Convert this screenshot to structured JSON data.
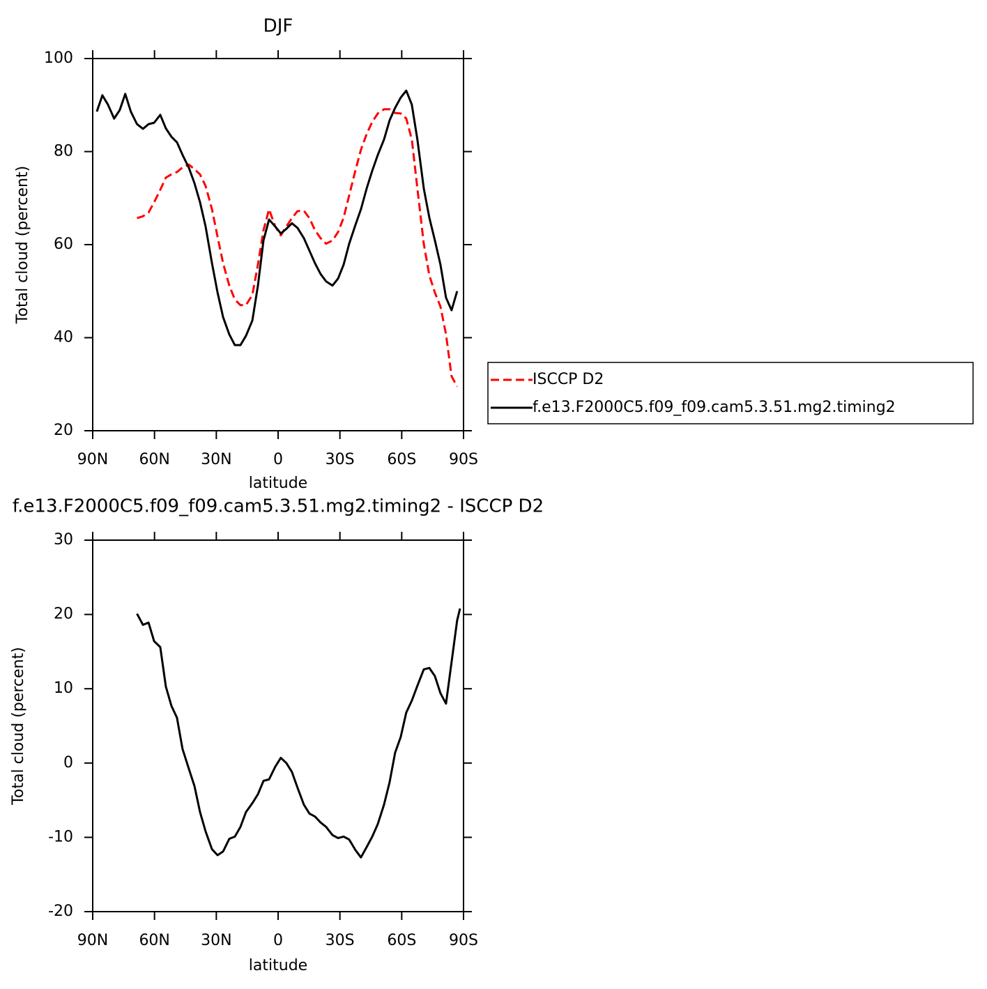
{
  "chart_data": [
    {
      "type": "line",
      "title": "DJF",
      "xlabel": "latitude",
      "ylabel": "Total cloud (percent)",
      "xlim": [
        90,
        -90
      ],
      "xticks": [
        {
          "value": 90,
          "label": "90N"
        },
        {
          "value": 60,
          "label": "60N"
        },
        {
          "value": 30,
          "label": "30N"
        },
        0,
        {
          "value": -30,
          "label": "30S"
        },
        {
          "value": -60,
          "label": "60S"
        },
        {
          "value": -90,
          "label": "90S"
        }
      ],
      "ylim": [
        20,
        100
      ],
      "yticks": [
        20,
        40,
        60,
        80,
        100
      ],
      "legend": "right",
      "x": [
        88.0,
        85.3,
        82.6,
        79.6,
        76.9,
        74.2,
        71.5,
        68.5,
        65.6,
        62.9,
        60.2,
        57.2,
        54.5,
        51.8,
        49.1,
        46.4,
        43.3,
        40.6,
        37.9,
        35.2,
        32.1,
        29.4,
        26.7,
        23.7,
        21.0,
        18.3,
        15.6,
        12.5,
        9.8,
        7.1,
        4.4,
        1.4,
        -1.3,
        -4.0,
        -6.7,
        -9.4,
        -12.5,
        -15.2,
        -17.9,
        -20.6,
        -23.3,
        -26.4,
        -29.1,
        -31.8,
        -34.5,
        -37.5,
        -40.2,
        -43.0,
        -45.7,
        -48.4,
        -51.4,
        -54.1,
        -56.8,
        -59.5,
        -62.2,
        -64.9,
        -67.6,
        -70.7,
        -73.4,
        -76.1,
        -78.8,
        -81.5,
        -84.2,
        -86.9
      ],
      "series": [
        {
          "name": "ISCCP D2",
          "color": "#ff0000",
          "dash": true,
          "values": [
            null,
            null,
            null,
            null,
            null,
            null,
            null,
            65.7,
            66.1,
            66.9,
            69.1,
            71.8,
            74.4,
            75.1,
            75.6,
            76.6,
            77.2,
            76.2,
            75.1,
            72.6,
            67.6,
            61.7,
            56.0,
            51.2,
            48.2,
            47.0,
            47.0,
            49.2,
            55.7,
            63.1,
            67.6,
            63.9,
            62.0,
            63.9,
            65.7,
            67.2,
            67.3,
            65.7,
            63.1,
            61.4,
            60.2,
            60.9,
            62.7,
            65.8,
            70.6,
            75.9,
            80.4,
            83.8,
            86.4,
            88.2,
            89.1,
            89.1,
            88.3,
            88.2,
            87.1,
            82.6,
            72.1,
            60.2,
            53.4,
            49.7,
            46.7,
            40.7,
            31.7,
            29.5
          ]
        },
        {
          "name": "f.e13.F2000C5.f09_f09.cam5.3.51.mg2.timing2",
          "color": "#000000",
          "dash": false,
          "values": [
            88.6,
            92.1,
            90.1,
            87.1,
            88.9,
            92.4,
            88.6,
            85.9,
            84.9,
            85.9,
            86.2,
            87.9,
            85.0,
            83.2,
            82.0,
            79.3,
            76.5,
            73.2,
            69.1,
            63.9,
            56.0,
            49.7,
            44.4,
            40.7,
            38.4,
            38.4,
            40.4,
            43.7,
            51.2,
            60.9,
            65.4,
            63.9,
            62.4,
            63.4,
            64.6,
            63.6,
            61.4,
            58.7,
            56.0,
            53.7,
            52.1,
            51.2,
            52.7,
            55.7,
            60.2,
            64.2,
            67.6,
            72.1,
            75.9,
            79.3,
            82.6,
            86.7,
            89.4,
            91.6,
            93.1,
            90.1,
            82.6,
            72.1,
            65.8,
            60.9,
            55.7,
            48.6,
            45.9,
            50.0
          ]
        }
      ]
    },
    {
      "type": "line",
      "title": "f.e13.F2000C5.f09_f09.cam5.3.51.mg2.timing2 - ISCCP D2",
      "xlabel": "latitude",
      "ylabel": "Total cloud (percent)",
      "xlim": [
        90,
        -90
      ],
      "xticks": [
        {
          "value": 90,
          "label": "90N"
        },
        {
          "value": 60,
          "label": "60N"
        },
        {
          "value": 30,
          "label": "30N"
        },
        0,
        {
          "value": -30,
          "label": "30S"
        },
        {
          "value": -60,
          "label": "60S"
        },
        {
          "value": -90,
          "label": "90S"
        }
      ],
      "ylim": [
        -20,
        30
      ],
      "yticks": [
        -20,
        -10,
        0,
        10,
        20,
        30
      ],
      "x": [
        68.5,
        65.6,
        62.9,
        60.2,
        57.2,
        54.5,
        51.8,
        49.1,
        46.4,
        43.3,
        40.6,
        37.9,
        35.2,
        32.1,
        29.4,
        26.7,
        23.7,
        21.0,
        18.3,
        15.6,
        12.5,
        9.8,
        7.1,
        4.4,
        1.4,
        -1.3,
        -4.0,
        -6.7,
        -9.4,
        -12.5,
        -15.2,
        -17.9,
        -20.6,
        -23.3,
        -26.4,
        -29.1,
        -31.8,
        -34.5,
        -37.5,
        -40.2,
        -43.0,
        -45.7,
        -48.4,
        -51.4,
        -54.1,
        -56.8,
        -59.5,
        -62.2,
        -64.9,
        -67.6,
        -70.7,
        -73.4,
        -76.1,
        -78.8,
        -81.5,
        -84.2,
        -86.9,
        -88.3
      ],
      "series": [
        {
          "color": "#000000",
          "dash": false,
          "values": [
            20.1,
            18.6,
            18.9,
            16.4,
            15.6,
            10.3,
            7.7,
            6.1,
            1.9,
            -0.8,
            -3.1,
            -6.6,
            -9.2,
            -11.6,
            -12.4,
            -11.9,
            -10.2,
            -9.9,
            -8.6,
            -6.6,
            -5.4,
            -4.2,
            -2.4,
            -2.2,
            -0.5,
            0.7,
            0.0,
            -1.2,
            -3.3,
            -5.6,
            -6.8,
            -7.2,
            -8.0,
            -8.6,
            -9.7,
            -10.1,
            -9.9,
            -10.3,
            -11.7,
            -12.7,
            -11.3,
            -9.9,
            -8.2,
            -5.6,
            -2.6,
            1.4,
            3.5,
            6.8,
            8.4,
            10.4,
            12.6,
            12.8,
            11.7,
            9.4,
            8.0,
            13.6,
            19.2,
            20.8
          ]
        }
      ]
    }
  ]
}
